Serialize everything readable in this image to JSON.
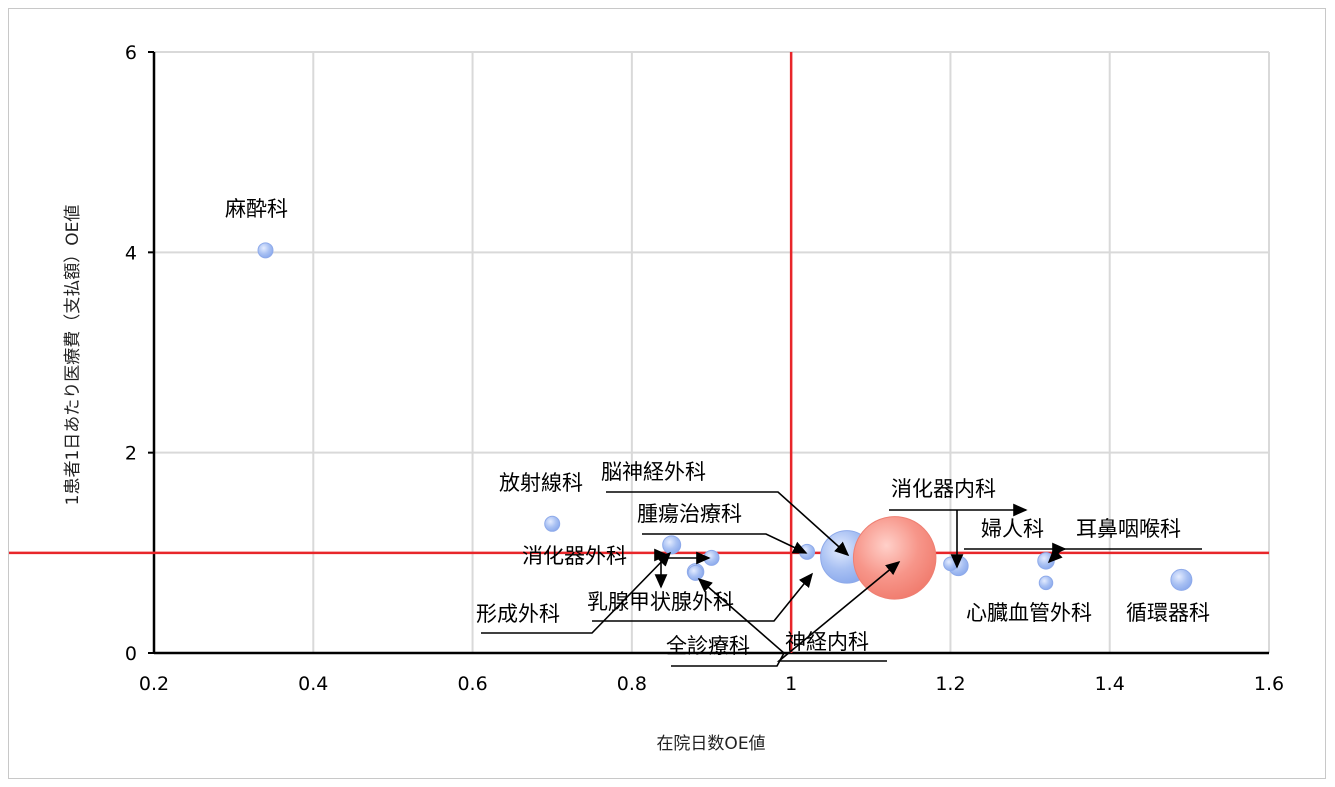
{
  "chart_data": {
    "type": "bubble",
    "xlabel": "在院日数OE値",
    "ylabel": "1患者1日あたり医療費（支払額）OE値",
    "xlim": [
      0.2,
      1.6
    ],
    "ylim": [
      0,
      6
    ],
    "xticks": [
      "0.2",
      "0.4",
      "0.6",
      "0.8",
      "1",
      "1.2",
      "1.4",
      "1.6"
    ],
    "yticks": [
      "0",
      "2",
      "4",
      "6"
    ],
    "grid": true,
    "reference_lines": {
      "x": 1,
      "y": 1,
      "color": "#e8262a"
    },
    "colors": {
      "bubble": "#9db7f0",
      "highlight": "#f4897e",
      "grid": "#d9d9d9"
    },
    "points": [
      {
        "label": "麻酔科",
        "x": 0.34,
        "y": 4.02,
        "size": 1
      },
      {
        "label": "放射線科",
        "x": 0.7,
        "y": 1.29,
        "size": 1
      },
      {
        "label": "消化器外科",
        "x": 0.85,
        "y": 1.08,
        "size": 1.2
      },
      {
        "label": "形成外科",
        "x": 0.9,
        "y": 0.95,
        "size": 1
      },
      {
        "label": "乳腺甲状腺外科",
        "x": 0.88,
        "y": 0.81,
        "size": 1.1
      },
      {
        "label": "全診療科",
        "x": 0.88,
        "y": 0.8,
        "size": 1
      },
      {
        "label": "脳神経外科",
        "x": 1.02,
        "y": 1.01,
        "size": 1
      },
      {
        "label": "腫瘍治療科",
        "x": 1.07,
        "y": 0.96,
        "size": 3.5
      },
      {
        "label": "神経内科",
        "x": 1.13,
        "y": 0.95,
        "size": 5.5,
        "highlight": true
      },
      {
        "label": "消化器内科",
        "x": 1.21,
        "y": 0.87,
        "size": 1.3
      },
      {
        "label": "",
        "x": 1.2,
        "y": 0.89,
        "size": 0.9
      },
      {
        "label": "婦人科",
        "x": 1.32,
        "y": 0.92,
        "size": 1.1
      },
      {
        "label": "耳鼻咽喉科",
        "x": 1.32,
        "y": 0.7,
        "size": 0.9
      },
      {
        "label": "心臓血管外科",
        "x": 1.49,
        "y": 0.73,
        "size": 1.4
      },
      {
        "label": "循環器科",
        "x": 1.49,
        "y": 0.73,
        "size": 0
      }
    ]
  }
}
